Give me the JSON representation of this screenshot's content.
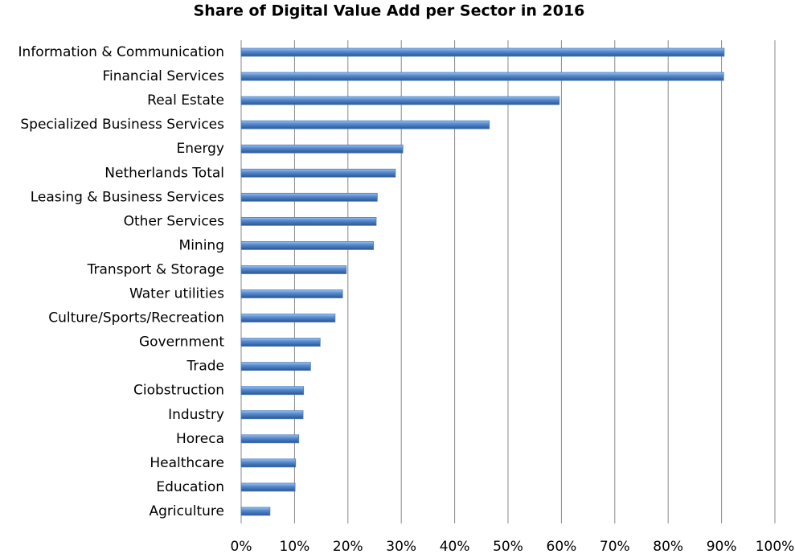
{
  "chart_data": {
    "type": "bar",
    "orientation": "horizontal",
    "title": "Share of Digital Value Add per Sector in 2016",
    "categories": [
      "Information & Communication",
      "Financial Services",
      "Real Estate",
      "Specialized Business Services",
      "Energy",
      "Netherlands Total",
      "Leasing & Business Services",
      "Other Services",
      "Mining",
      "Transport & Storage",
      "Water utilities",
      "Culture/Sports/Recreation",
      "Government",
      "Trade",
      "Ciobstruction",
      "Industry",
      "Horeca",
      "Healthcare",
      "Education",
      "Agriculture"
    ],
    "values": [
      90.5,
      90.4,
      59.6,
      46.5,
      30.3,
      28.9,
      25.5,
      25.3,
      24.8,
      19.7,
      19.0,
      17.6,
      14.8,
      13.0,
      11.7,
      11.6,
      10.8,
      10.2,
      10.1,
      5.4
    ],
    "color": "#4a7ebb",
    "xlim": [
      0,
      100
    ],
    "xticks": [
      {
        "value": 0,
        "label": "0%"
      },
      {
        "value": 10,
        "label": "10%"
      },
      {
        "value": 20,
        "label": "20%"
      },
      {
        "value": 30,
        "label": "30%"
      },
      {
        "value": 40,
        "label": "40%"
      },
      {
        "value": 50,
        "label": "50%"
      },
      {
        "value": 60,
        "label": "60%"
      },
      {
        "value": 70,
        "label": "70%"
      },
      {
        "value": 80,
        "label": "80%"
      },
      {
        "value": 90,
        "label": "90%"
      },
      {
        "value": 100,
        "label": "100%"
      }
    ],
    "grid": true
  }
}
